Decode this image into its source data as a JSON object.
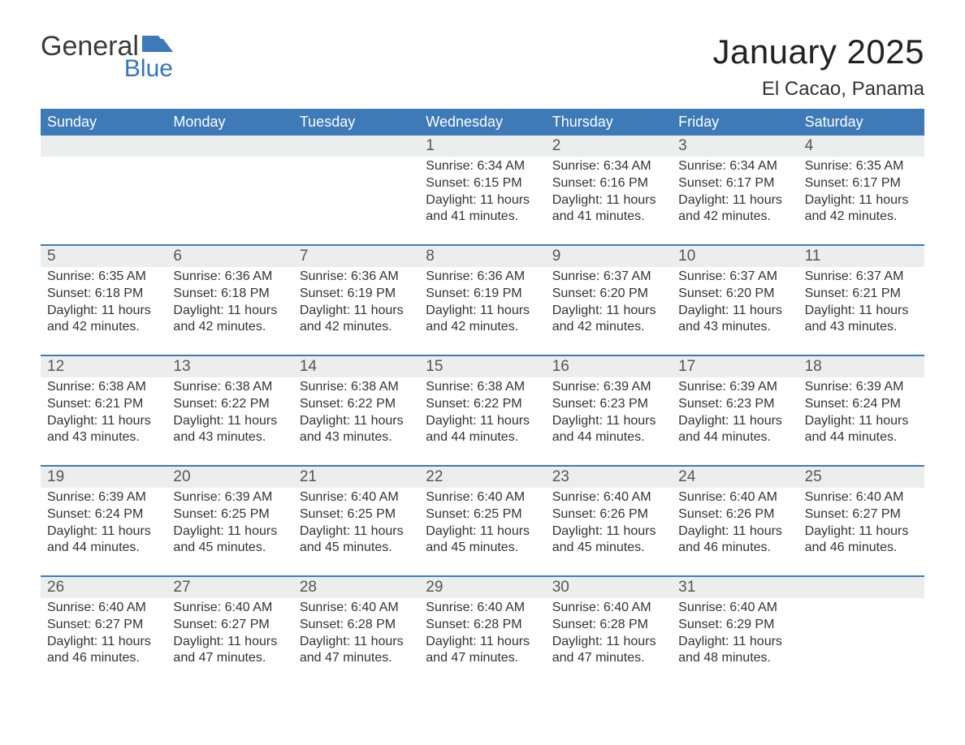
{
  "logo": {
    "word1": "General",
    "word2": "Blue",
    "flag_color": "#3e7ab8"
  },
  "header": {
    "title": "January 2025",
    "location": "El Cacao, Panama"
  },
  "style": {
    "header_bg": "#3e7ab8",
    "header_text": "#ffffff",
    "daynum_bg": "#eceeee",
    "week_divider": "#3e7ab8",
    "body_text": "#333333",
    "title_fontsize": 42,
    "location_fontsize": 24,
    "weekday_fontsize": 18,
    "daynum_fontsize": 19,
    "body_fontsize": 16
  },
  "weekdays": [
    "Sunday",
    "Monday",
    "Tuesday",
    "Wednesday",
    "Thursday",
    "Friday",
    "Saturday"
  ],
  "weeks": [
    [
      null,
      null,
      null,
      {
        "n": "1",
        "sr": "6:34 AM",
        "ss": "6:15 PM",
        "dl": "11 hours and 41 minutes."
      },
      {
        "n": "2",
        "sr": "6:34 AM",
        "ss": "6:16 PM",
        "dl": "11 hours and 41 minutes."
      },
      {
        "n": "3",
        "sr": "6:34 AM",
        "ss": "6:17 PM",
        "dl": "11 hours and 42 minutes."
      },
      {
        "n": "4",
        "sr": "6:35 AM",
        "ss": "6:17 PM",
        "dl": "11 hours and 42 minutes."
      }
    ],
    [
      {
        "n": "5",
        "sr": "6:35 AM",
        "ss": "6:18 PM",
        "dl": "11 hours and 42 minutes."
      },
      {
        "n": "6",
        "sr": "6:36 AM",
        "ss": "6:18 PM",
        "dl": "11 hours and 42 minutes."
      },
      {
        "n": "7",
        "sr": "6:36 AM",
        "ss": "6:19 PM",
        "dl": "11 hours and 42 minutes."
      },
      {
        "n": "8",
        "sr": "6:36 AM",
        "ss": "6:19 PM",
        "dl": "11 hours and 42 minutes."
      },
      {
        "n": "9",
        "sr": "6:37 AM",
        "ss": "6:20 PM",
        "dl": "11 hours and 42 minutes."
      },
      {
        "n": "10",
        "sr": "6:37 AM",
        "ss": "6:20 PM",
        "dl": "11 hours and 43 minutes."
      },
      {
        "n": "11",
        "sr": "6:37 AM",
        "ss": "6:21 PM",
        "dl": "11 hours and 43 minutes."
      }
    ],
    [
      {
        "n": "12",
        "sr": "6:38 AM",
        "ss": "6:21 PM",
        "dl": "11 hours and 43 minutes."
      },
      {
        "n": "13",
        "sr": "6:38 AM",
        "ss": "6:22 PM",
        "dl": "11 hours and 43 minutes."
      },
      {
        "n": "14",
        "sr": "6:38 AM",
        "ss": "6:22 PM",
        "dl": "11 hours and 43 minutes."
      },
      {
        "n": "15",
        "sr": "6:38 AM",
        "ss": "6:22 PM",
        "dl": "11 hours and 44 minutes."
      },
      {
        "n": "16",
        "sr": "6:39 AM",
        "ss": "6:23 PM",
        "dl": "11 hours and 44 minutes."
      },
      {
        "n": "17",
        "sr": "6:39 AM",
        "ss": "6:23 PM",
        "dl": "11 hours and 44 minutes."
      },
      {
        "n": "18",
        "sr": "6:39 AM",
        "ss": "6:24 PM",
        "dl": "11 hours and 44 minutes."
      }
    ],
    [
      {
        "n": "19",
        "sr": "6:39 AM",
        "ss": "6:24 PM",
        "dl": "11 hours and 44 minutes."
      },
      {
        "n": "20",
        "sr": "6:39 AM",
        "ss": "6:25 PM",
        "dl": "11 hours and 45 minutes."
      },
      {
        "n": "21",
        "sr": "6:40 AM",
        "ss": "6:25 PM",
        "dl": "11 hours and 45 minutes."
      },
      {
        "n": "22",
        "sr": "6:40 AM",
        "ss": "6:25 PM",
        "dl": "11 hours and 45 minutes."
      },
      {
        "n": "23",
        "sr": "6:40 AM",
        "ss": "6:26 PM",
        "dl": "11 hours and 45 minutes."
      },
      {
        "n": "24",
        "sr": "6:40 AM",
        "ss": "6:26 PM",
        "dl": "11 hours and 46 minutes."
      },
      {
        "n": "25",
        "sr": "6:40 AM",
        "ss": "6:27 PM",
        "dl": "11 hours and 46 minutes."
      }
    ],
    [
      {
        "n": "26",
        "sr": "6:40 AM",
        "ss": "6:27 PM",
        "dl": "11 hours and 46 minutes."
      },
      {
        "n": "27",
        "sr": "6:40 AM",
        "ss": "6:27 PM",
        "dl": "11 hours and 47 minutes."
      },
      {
        "n": "28",
        "sr": "6:40 AM",
        "ss": "6:28 PM",
        "dl": "11 hours and 47 minutes."
      },
      {
        "n": "29",
        "sr": "6:40 AM",
        "ss": "6:28 PM",
        "dl": "11 hours and 47 minutes."
      },
      {
        "n": "30",
        "sr": "6:40 AM",
        "ss": "6:28 PM",
        "dl": "11 hours and 47 minutes."
      },
      {
        "n": "31",
        "sr": "6:40 AM",
        "ss": "6:29 PM",
        "dl": "11 hours and 48 minutes."
      },
      null
    ]
  ],
  "labels": {
    "sunrise": "Sunrise:",
    "sunset": "Sunset:",
    "daylight": "Daylight:"
  }
}
